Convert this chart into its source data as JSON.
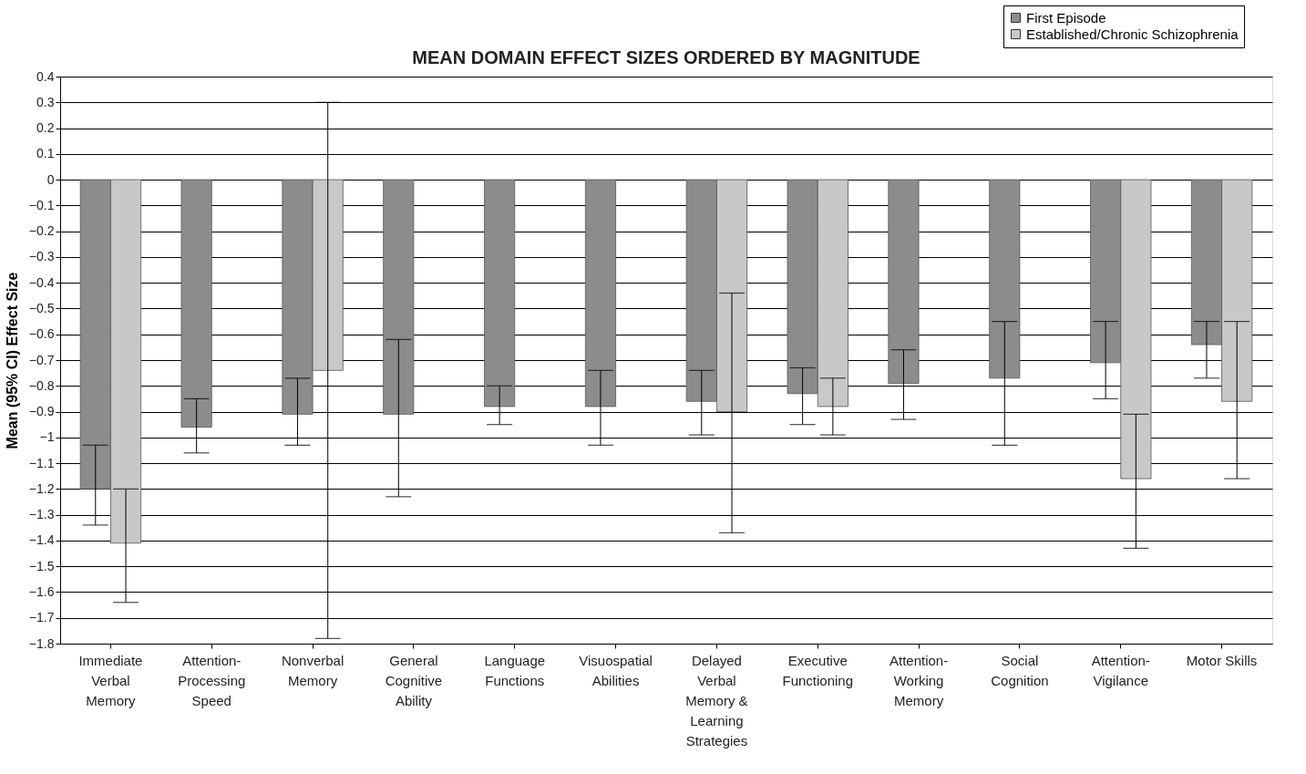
{
  "chart_data": {
    "type": "bar",
    "title": "MEAN DOMAIN EFFECT SIZES ORDERED BY MAGNITUDE",
    "ylabel": "Mean (95% CI) Effect Size",
    "categories": [
      "Immediate Verbal Memory",
      "Attention-Processing Speed",
      "Nonverbal Memory",
      "General Cognitive Ability",
      "Language Functions",
      "Visuospatial Abilities",
      "Delayed Verbal Memory & Learning Strategies",
      "Executive Functioning",
      "Attention-Working Memory",
      "Social Cognition",
      "Attention-Vigilance",
      "Motor Skills"
    ],
    "series": [
      {
        "name": "First Episode",
        "color": "#8c8c8c",
        "values": [
          -1.2,
          -0.96,
          -0.91,
          -0.91,
          -0.88,
          -0.88,
          -0.86,
          -0.83,
          -0.79,
          -0.77,
          -0.71,
          -0.64
        ],
        "errors": [
          [
            -1.34,
            -1.03
          ],
          [
            -1.06,
            -0.85
          ],
          [
            -1.03,
            -0.77
          ],
          [
            -1.23,
            -0.62
          ],
          [
            -0.95,
            -0.8
          ],
          [
            -1.03,
            -0.74
          ],
          [
            -0.99,
            -0.74
          ],
          [
            -0.95,
            -0.73
          ],
          [
            -0.93,
            -0.66
          ],
          [
            -1.03,
            -0.55
          ],
          [
            -0.85,
            -0.55
          ],
          [
            -0.77,
            -0.55
          ]
        ]
      },
      {
        "name": "Established/Chronic Schizophrenia",
        "color": "#c8c8c8",
        "values": [
          -1.41,
          null,
          -0.74,
          null,
          null,
          null,
          -0.9,
          -0.88,
          null,
          null,
          -1.16,
          -0.86
        ],
        "errors": [
          [
            -1.64,
            -1.2
          ],
          null,
          [
            -1.78,
            0.3
          ],
          null,
          null,
          null,
          [
            -1.37,
            -0.44
          ],
          [
            -0.99,
            -0.77
          ],
          null,
          null,
          [
            -1.43,
            -0.91
          ],
          [
            -1.16,
            -0.55
          ]
        ]
      }
    ],
    "ylim": [
      -1.8,
      0.4
    ],
    "yticks": [
      0.4,
      0.3,
      0.2,
      0.1,
      0,
      -0.1,
      -0.2,
      -0.3,
      -0.4,
      -0.5,
      -0.6,
      -0.7,
      -0.8,
      -0.9,
      -1,
      -1.1,
      -1.2,
      -1.3,
      -1.4,
      -1.5,
      -1.6,
      -1.7,
      -1.8
    ],
    "grid": "y",
    "legend": "top right"
  }
}
